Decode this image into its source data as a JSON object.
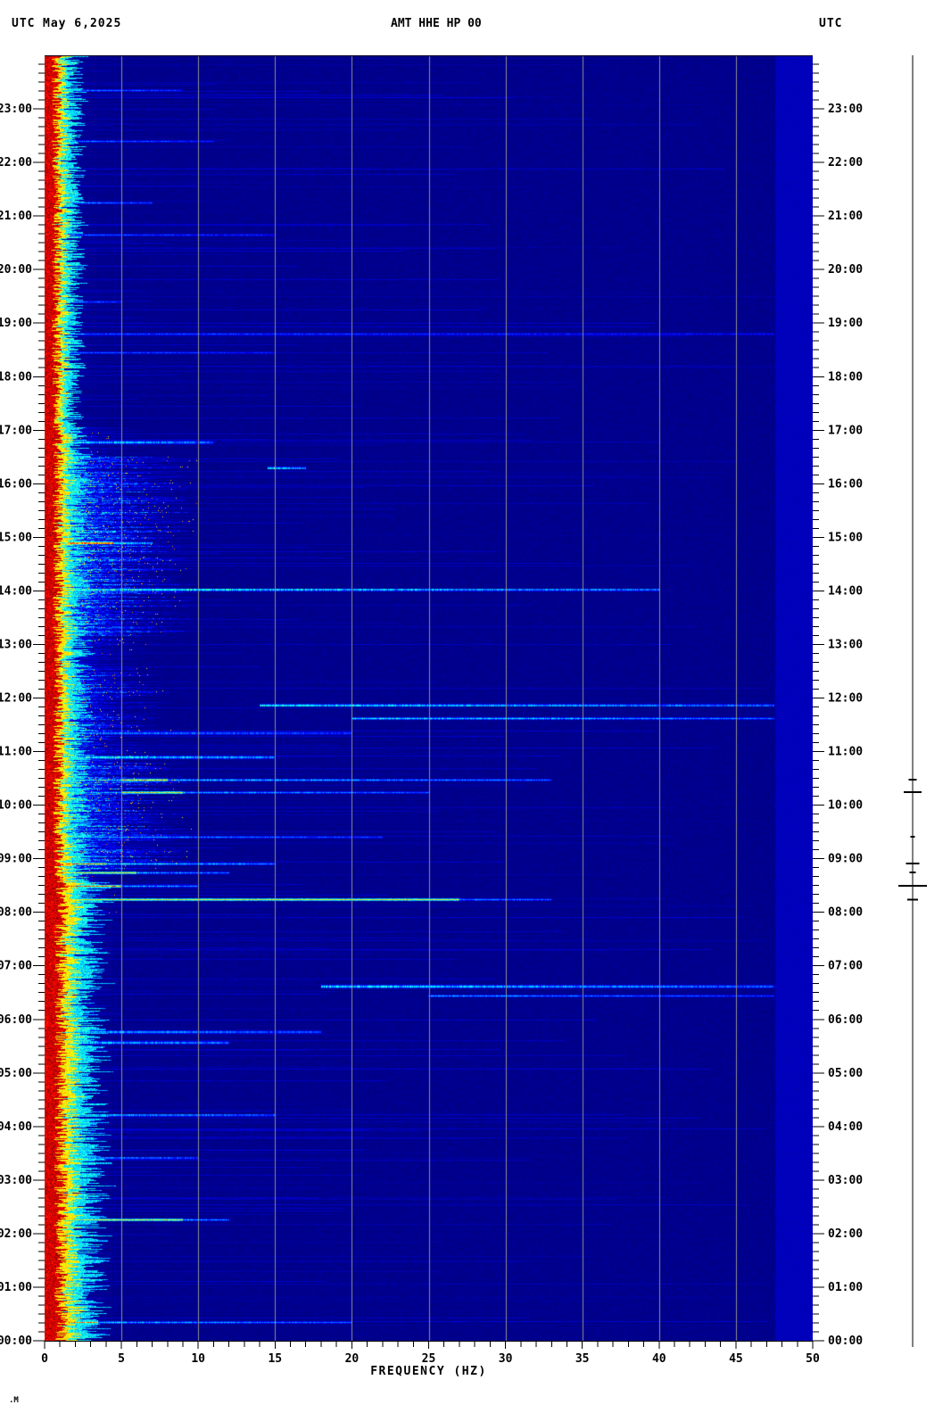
{
  "header": {
    "utc_left": "UTC",
    "date": "May 6,2025",
    "title": "AMT HHE HP 00",
    "utc_right": "UTC"
  },
  "footer": {
    "glyph": ".M"
  },
  "chart_data": {
    "type": "heatmap",
    "subtype": "seismic-spectrogram",
    "station": "AMT HHE HP 00",
    "date": "May 6,2025",
    "timezone": "UTC",
    "xlabel": "FREQUENCY (HZ)",
    "x_range_hz": [
      0,
      50
    ],
    "x_major_tick_labels": [
      "0",
      "5",
      "10",
      "15",
      "20",
      "25",
      "30",
      "35",
      "40",
      "45",
      "50"
    ],
    "x_minor_step_hz": 1,
    "y_top": "24:00",
    "y_bottom": "00:00",
    "hour_labels": [
      "23:00",
      "22:00",
      "21:00",
      "20:00",
      "19:00",
      "18:00",
      "17:00",
      "16:00",
      "15:00",
      "14:00",
      "13:00",
      "12:00",
      "11:00",
      "10:00",
      "09:00",
      "08:00",
      "07:00",
      "06:00",
      "05:00",
      "04:00",
      "03:00",
      "02:00",
      "01:00",
      "00:00"
    ],
    "minor_tick_minutes": 10,
    "grid_hz": [
      5,
      10,
      15,
      20,
      25,
      30,
      35,
      40,
      45
    ],
    "grid_color": "#8f8f8f",
    "colormap": "jet",
    "background_value_color": "#00008c",
    "right_band": {
      "f_start_hz": 47.55,
      "value": 0.05
    },
    "background_band": [
      {
        "t0": 17.0,
        "t1": 24.01,
        "red": 0.85,
        "yellow": 0.45,
        "cyan": 0.8
      },
      {
        "t0": 8.6,
        "t1": 17.0,
        "red": 0.95,
        "yellow": 0.55,
        "cyan": 1.0
      },
      {
        "t0": 0.0,
        "t1": 8.6,
        "red": 1.15,
        "yellow": 0.75,
        "cyan": 1.4
      }
    ],
    "activity_periods": [
      {
        "t0": 17.05,
        "t1": 24.01,
        "fmax": 3.5,
        "intensity": 0.2
      },
      {
        "t0": 16.5,
        "t1": 17.05,
        "fmax": 5.0,
        "intensity": 0.5
      },
      {
        "t0": 13.15,
        "t1": 16.5,
        "fmax": 8.0,
        "intensity": 1.0
      },
      {
        "t0": 12.55,
        "t1": 13.15,
        "fmax": 5.5,
        "intensity": 0.55
      },
      {
        "t0": 10.9,
        "t1": 12.55,
        "fmax": 6.5,
        "intensity": 0.8
      },
      {
        "t0": 8.8,
        "t1": 10.9,
        "fmax": 7.5,
        "intensity": 0.95
      },
      {
        "t0": 7.9,
        "t1": 8.8,
        "fmax": 4.5,
        "intensity": 0.5
      },
      {
        "t0": 0.0,
        "t1": 7.9,
        "fmax": 4.0,
        "intensity": 0.38
      }
    ],
    "events": [
      {
        "t": 23.35,
        "f": [
          1.5,
          9
        ],
        "v": 0.35
      },
      {
        "t": 22.4,
        "f": [
          1.5,
          11
        ],
        "v": 0.32
      },
      {
        "t": 21.25,
        "f": [
          1.5,
          7
        ],
        "v": 0.38
      },
      {
        "t": 20.65,
        "f": [
          1.5,
          15
        ],
        "v": 0.3
      },
      {
        "t": 19.4,
        "f": [
          1.5,
          5
        ],
        "v": 0.35
      },
      {
        "t": 18.8,
        "f": [
          1.5,
          47.5
        ],
        "v": 0.28
      },
      {
        "t": 18.45,
        "f": [
          1.5,
          15
        ],
        "v": 0.3
      },
      {
        "t": 16.78,
        "f": [
          1.5,
          11
        ],
        "v": 0.45
      },
      {
        "t": 16.3,
        "f": [
          14.5,
          17
        ],
        "v": 0.5
      },
      {
        "t": 14.9,
        "f": [
          1.2,
          7
        ],
        "v": 0.55,
        "core": [
          1.5,
          4.5,
          0.85
        ]
      },
      {
        "t": 14.03,
        "f": [
          1.5,
          40
        ],
        "v": 0.5
      },
      {
        "t": 11.87,
        "f": [
          14,
          47.5
        ],
        "v": 0.45
      },
      {
        "t": 11.63,
        "f": [
          20,
          47.5
        ],
        "v": 0.5
      },
      {
        "t": 11.35,
        "f": [
          1.5,
          20
        ],
        "v": 0.33
      },
      {
        "t": 10.9,
        "f": [
          1.5,
          15
        ],
        "v": 0.5
      },
      {
        "t": 10.48,
        "f": [
          1,
          33
        ],
        "v": 0.5,
        "core": [
          5,
          8,
          0.85
        ]
      },
      {
        "t": 10.24,
        "f": [
          1,
          25
        ],
        "v": 0.45,
        "core": [
          5,
          9,
          0.75
        ]
      },
      {
        "t": 9.41,
        "f": [
          1.5,
          22
        ],
        "v": 0.4
      },
      {
        "t": 8.91,
        "f": [
          0.3,
          15
        ],
        "v": 0.55,
        "core": [
          0.3,
          4,
          0.9
        ]
      },
      {
        "t": 8.74,
        "f": [
          0.3,
          12
        ],
        "v": 0.5,
        "core": [
          0.3,
          6,
          0.72
        ]
      },
      {
        "t": 8.49,
        "f": [
          0.3,
          10
        ],
        "v": 0.55,
        "core": [
          0.3,
          5,
          0.93
        ]
      },
      {
        "t": 8.24,
        "f": [
          1,
          33
        ],
        "v": 0.5,
        "core": [
          1,
          27,
          0.7
        ]
      },
      {
        "t": 6.62,
        "f": [
          18,
          47.5
        ],
        "v": 0.45
      },
      {
        "t": 6.45,
        "f": [
          25,
          47.5
        ],
        "v": 0.38
      },
      {
        "t": 5.77,
        "f": [
          1.5,
          18
        ],
        "v": 0.38
      },
      {
        "t": 5.57,
        "f": [
          0.5,
          12
        ],
        "v": 0.45
      },
      {
        "t": 4.22,
        "f": [
          1.5,
          15
        ],
        "v": 0.4
      },
      {
        "t": 3.42,
        "f": [
          1.5,
          10
        ],
        "v": 0.36
      },
      {
        "t": 2.27,
        "f": [
          1.5,
          12
        ],
        "v": 0.55,
        "core": [
          1.5,
          9,
          0.7
        ]
      },
      {
        "t": 0.35,
        "f": [
          1.5,
          20
        ],
        "v": 0.45,
        "core": [
          1.5,
          3.5,
          0.9
        ]
      }
    ],
    "trace_spikes": [
      {
        "t": 10.48,
        "w": 9
      },
      {
        "t": 10.24,
        "w": 20
      },
      {
        "t": 9.41,
        "w": 5
      },
      {
        "t": 8.91,
        "w": 15
      },
      {
        "t": 8.74,
        "w": 7
      },
      {
        "t": 8.49,
        "w": 32
      },
      {
        "t": 8.24,
        "w": 12
      }
    ]
  }
}
